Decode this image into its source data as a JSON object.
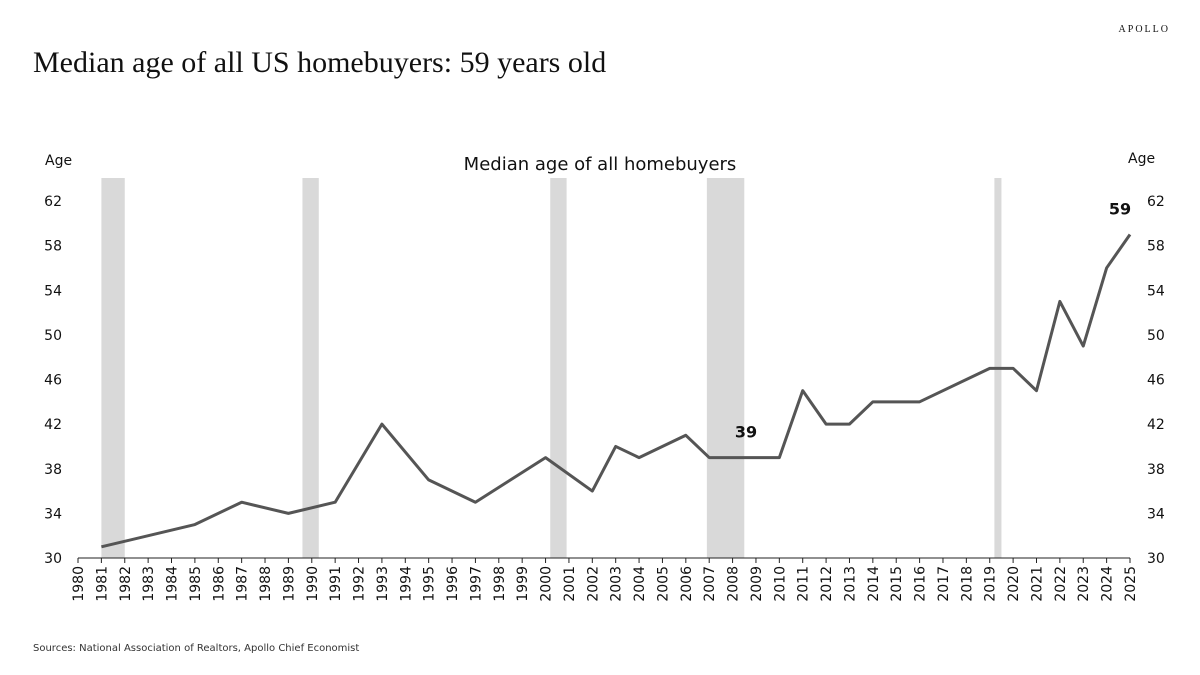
{
  "brand": "APOLLO",
  "title": "Median age of all US homebuyers: 59 years old",
  "source": "Sources: National Association of Realtors, Apollo Chief Economist",
  "chart_data": {
    "type": "line",
    "title": "Median age of all homebuyers",
    "y_label": "Age",
    "y2_label": "Age",
    "xlim": [
      1980,
      2025
    ],
    "xticks": [
      1980,
      1981,
      1982,
      1983,
      1984,
      1985,
      1986,
      1987,
      1988,
      1989,
      1990,
      1991,
      1992,
      1993,
      1994,
      1995,
      1996,
      1997,
      1998,
      1999,
      2000,
      2001,
      2002,
      2003,
      2004,
      2005,
      2006,
      2007,
      2008,
      2009,
      2010,
      2011,
      2012,
      2013,
      2014,
      2015,
      2016,
      2017,
      2018,
      2019,
      2020,
      2021,
      2022,
      2023,
      2024,
      2025
    ],
    "ylim": [
      30,
      62
    ],
    "yticks": [
      30,
      34,
      38,
      42,
      46,
      50,
      54,
      58,
      62
    ],
    "y2lim": [
      30,
      62
    ],
    "y2ticks": [
      30,
      34,
      38,
      42,
      46,
      50,
      54,
      58,
      62
    ],
    "recessions": [
      {
        "start": 1981.0,
        "end": 1982.0
      },
      {
        "start": 1989.6,
        "end": 1990.3
      },
      {
        "start": 2000.2,
        "end": 2000.9
      },
      {
        "start": 2006.9,
        "end": 2008.5
      },
      {
        "start": 2019.2,
        "end": 2019.5
      }
    ],
    "recession_color": "#d9d9d9",
    "series": [
      {
        "name": "Median age of all homebuyers",
        "color": "#555555",
        "x": [
          1981,
          1985,
          1987,
          1989,
          1991,
          1993,
          1995,
          1997,
          2000,
          2002,
          2003,
          2004,
          2006,
          2007,
          2008,
          2009,
          2010,
          2011,
          2012,
          2013,
          2014,
          2015,
          2016,
          2019,
          2020,
          2021,
          2022,
          2023,
          2024,
          2025
        ],
        "values": [
          31,
          33,
          35,
          34,
          35,
          42,
          37,
          35,
          39,
          36,
          40,
          39,
          41,
          39,
          39,
          39,
          39,
          45,
          42,
          42,
          44,
          44,
          44,
          47,
          47,
          45,
          53,
          49,
          56,
          59
        ]
      }
    ],
    "annotations": [
      {
        "x": 2009,
        "y": 39
      },
      {
        "x": 2025,
        "y": 59
      }
    ]
  }
}
